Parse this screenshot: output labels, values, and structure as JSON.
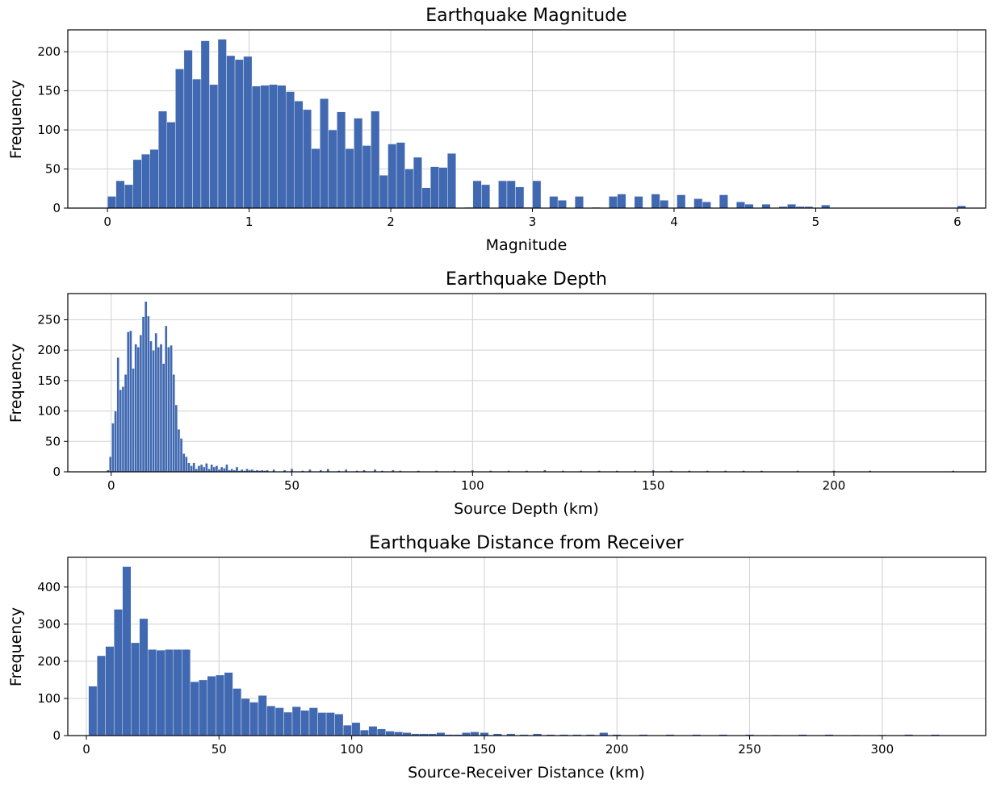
{
  "colors": {
    "bar": "#4169b1",
    "grid": "#d0d0d0"
  },
  "chart_data": [
    {
      "type": "bar",
      "title": "Earthquake Magnitude",
      "xlabel": "Magnitude",
      "ylabel": "Frequency",
      "xlim": [
        -0.28,
        6.2
      ],
      "ylim": [
        0,
        228
      ],
      "xticks": [
        0,
        1,
        2,
        3,
        4,
        5,
        6
      ],
      "yticks": [
        0,
        50,
        100,
        150,
        200
      ],
      "grid": true,
      "bin_width": 0.06,
      "series": [
        {
          "x": [
            0.03,
            0.09,
            0.15,
            0.21,
            0.27,
            0.33,
            0.39,
            0.45,
            0.51,
            0.57,
            0.63,
            0.69,
            0.75,
            0.81,
            0.87,
            0.93,
            0.99,
            1.05,
            1.11,
            1.17,
            1.23,
            1.29,
            1.35,
            1.41,
            1.47,
            1.53,
            1.59,
            1.65,
            1.71,
            1.77,
            1.83,
            1.89,
            1.95,
            2.01,
            2.07,
            2.13,
            2.19,
            2.25,
            2.31,
            2.37,
            2.43,
            2.49,
            2.55,
            2.61,
            2.67,
            2.73,
            2.79,
            2.85,
            2.91,
            2.97,
            3.03,
            3.09,
            3.15,
            3.21,
            3.27,
            3.33,
            3.39,
            3.45,
            3.51,
            3.57,
            3.63,
            3.69,
            3.75,
            3.81,
            3.87,
            3.93,
            3.99,
            4.05,
            4.11,
            4.17,
            4.23,
            4.29,
            4.35,
            4.41,
            4.47,
            4.53,
            4.59,
            4.65,
            4.71,
            4.77,
            4.83,
            4.89,
            4.95,
            5.01,
            5.07,
            6.03
          ],
          "values": [
            15,
            35,
            30,
            62,
            69,
            75,
            124,
            110,
            178,
            202,
            165,
            214,
            158,
            216,
            195,
            190,
            194,
            156,
            157,
            158,
            157,
            149,
            137,
            126,
            76,
            140,
            100,
            123,
            76,
            115,
            80,
            124,
            42,
            82,
            84,
            50,
            65,
            26,
            53,
            52,
            70,
            0,
            1,
            35,
            30,
            0,
            35,
            35,
            27,
            1,
            35,
            0,
            15,
            10,
            0,
            15,
            0,
            1,
            0,
            15,
            18,
            0,
            15,
            0,
            18,
            10,
            0,
            17,
            1,
            12,
            8,
            0,
            17,
            0,
            8,
            5,
            0,
            5,
            0,
            2,
            5,
            2,
            2,
            0,
            4,
            3
          ]
        }
      ]
    },
    {
      "type": "bar",
      "title": "Earthquake Depth",
      "xlabel": "Source Depth (km)",
      "ylabel": "Frequency",
      "xlim": [
        -12,
        242
      ],
      "ylim": [
        0,
        293
      ],
      "xticks": [
        0,
        50,
        100,
        150,
        200
      ],
      "yticks": [
        0,
        50,
        100,
        150,
        200,
        250
      ],
      "grid": true,
      "bin_width": 0.7,
      "series": [
        {
          "x": [
            -0.9,
            -0.2,
            0.5,
            1.2,
            1.9,
            2.6,
            3.3,
            4.0,
            4.7,
            5.4,
            6.1,
            6.8,
            7.5,
            8.2,
            8.9,
            9.6,
            10.3,
            11.0,
            11.7,
            12.4,
            13.1,
            13.8,
            14.5,
            15.2,
            15.9,
            16.6,
            17.3,
            18.0,
            18.7,
            19.4,
            20.1,
            20.8,
            21.5,
            22.2,
            22.9,
            23.6,
            24.3,
            25.0,
            25.7,
            26.4,
            27.1,
            27.8,
            28.5,
            29.2,
            29.9,
            30.6,
            31.3,
            32.0,
            32.7,
            33.4,
            34.1,
            34.8,
            35.5,
            36.2,
            36.9,
            37.6,
            38.3,
            39.0,
            39.7,
            40.4,
            41.1,
            41.8,
            42.5,
            43.2,
            45,
            48,
            50,
            53,
            55,
            58,
            60,
            63,
            65,
            68,
            70,
            73,
            75,
            78,
            80,
            85,
            90,
            95,
            100,
            105,
            110,
            115,
            120,
            125,
            130,
            135,
            140,
            145,
            150,
            155,
            160,
            165,
            170,
            175,
            180,
            190,
            200,
            210,
            233
          ],
          "values": [
            3,
            25,
            80,
            100,
            188,
            135,
            140,
            160,
            230,
            232,
            170,
            210,
            205,
            225,
            255,
            280,
            256,
            215,
            200,
            228,
            205,
            210,
            178,
            240,
            205,
            208,
            160,
            110,
            70,
            55,
            30,
            25,
            15,
            10,
            15,
            5,
            10,
            12,
            8,
            14,
            5,
            12,
            8,
            10,
            4,
            8,
            6,
            12,
            3,
            5,
            3,
            8,
            2,
            4,
            2,
            5,
            3,
            4,
            2,
            3,
            2,
            3,
            2,
            3,
            4,
            3,
            5,
            2,
            4,
            3,
            5,
            2,
            4,
            2,
            3,
            4,
            2,
            3,
            2,
            2,
            2,
            2,
            3,
            2,
            2,
            2,
            3,
            2,
            2,
            2,
            2,
            2,
            3,
            2,
            2,
            2,
            2,
            2,
            2,
            2,
            2,
            2,
            2
          ]
        }
      ]
    },
    {
      "type": "bar",
      "title": "Earthquake Distance from Receiver",
      "xlabel": "Source-Receiver Distance (km)",
      "ylabel": "Frequency",
      "xlim": [
        -7,
        339
      ],
      "ylim": [
        0,
        480
      ],
      "xticks": [
        0,
        50,
        100,
        150,
        200,
        250,
        300
      ],
      "yticks": [
        0,
        100,
        200,
        300,
        400
      ],
      "grid": true,
      "bin_width": 3.2,
      "series": [
        {
          "x": [
            2.4,
            5.6,
            8.8,
            12.0,
            15.2,
            18.4,
            21.6,
            24.8,
            28.0,
            31.2,
            34.4,
            37.6,
            40.8,
            44.0,
            47.2,
            50.4,
            53.6,
            56.8,
            60.0,
            63.2,
            66.4,
            69.6,
            72.8,
            76.0,
            79.2,
            82.4,
            85.6,
            88.8,
            92.0,
            95.2,
            98.4,
            101.6,
            104.8,
            108.0,
            111.2,
            114.4,
            117.6,
            120.8,
            124.0,
            127.2,
            130.4,
            133.6,
            136.8,
            140.0,
            143.2,
            146.4,
            150.0,
            155,
            160,
            165,
            170,
            175,
            180,
            185,
            190,
            195,
            200,
            210,
            220,
            230,
            240,
            250,
            260,
            270,
            280,
            290,
            300,
            310,
            320
          ],
          "values": [
            133,
            215,
            240,
            340,
            455,
            250,
            315,
            232,
            230,
            232,
            232,
            232,
            145,
            150,
            160,
            163,
            170,
            127,
            100,
            90,
            108,
            80,
            75,
            63,
            78,
            68,
            75,
            62,
            62,
            58,
            28,
            35,
            15,
            25,
            18,
            12,
            10,
            8,
            5,
            5,
            5,
            8,
            3,
            3,
            8,
            10,
            8,
            5,
            5,
            3,
            5,
            3,
            3,
            3,
            3,
            8,
            3,
            3,
            3,
            3,
            3,
            3,
            2,
            3,
            3,
            2,
            2,
            3,
            3
          ]
        }
      ]
    }
  ]
}
